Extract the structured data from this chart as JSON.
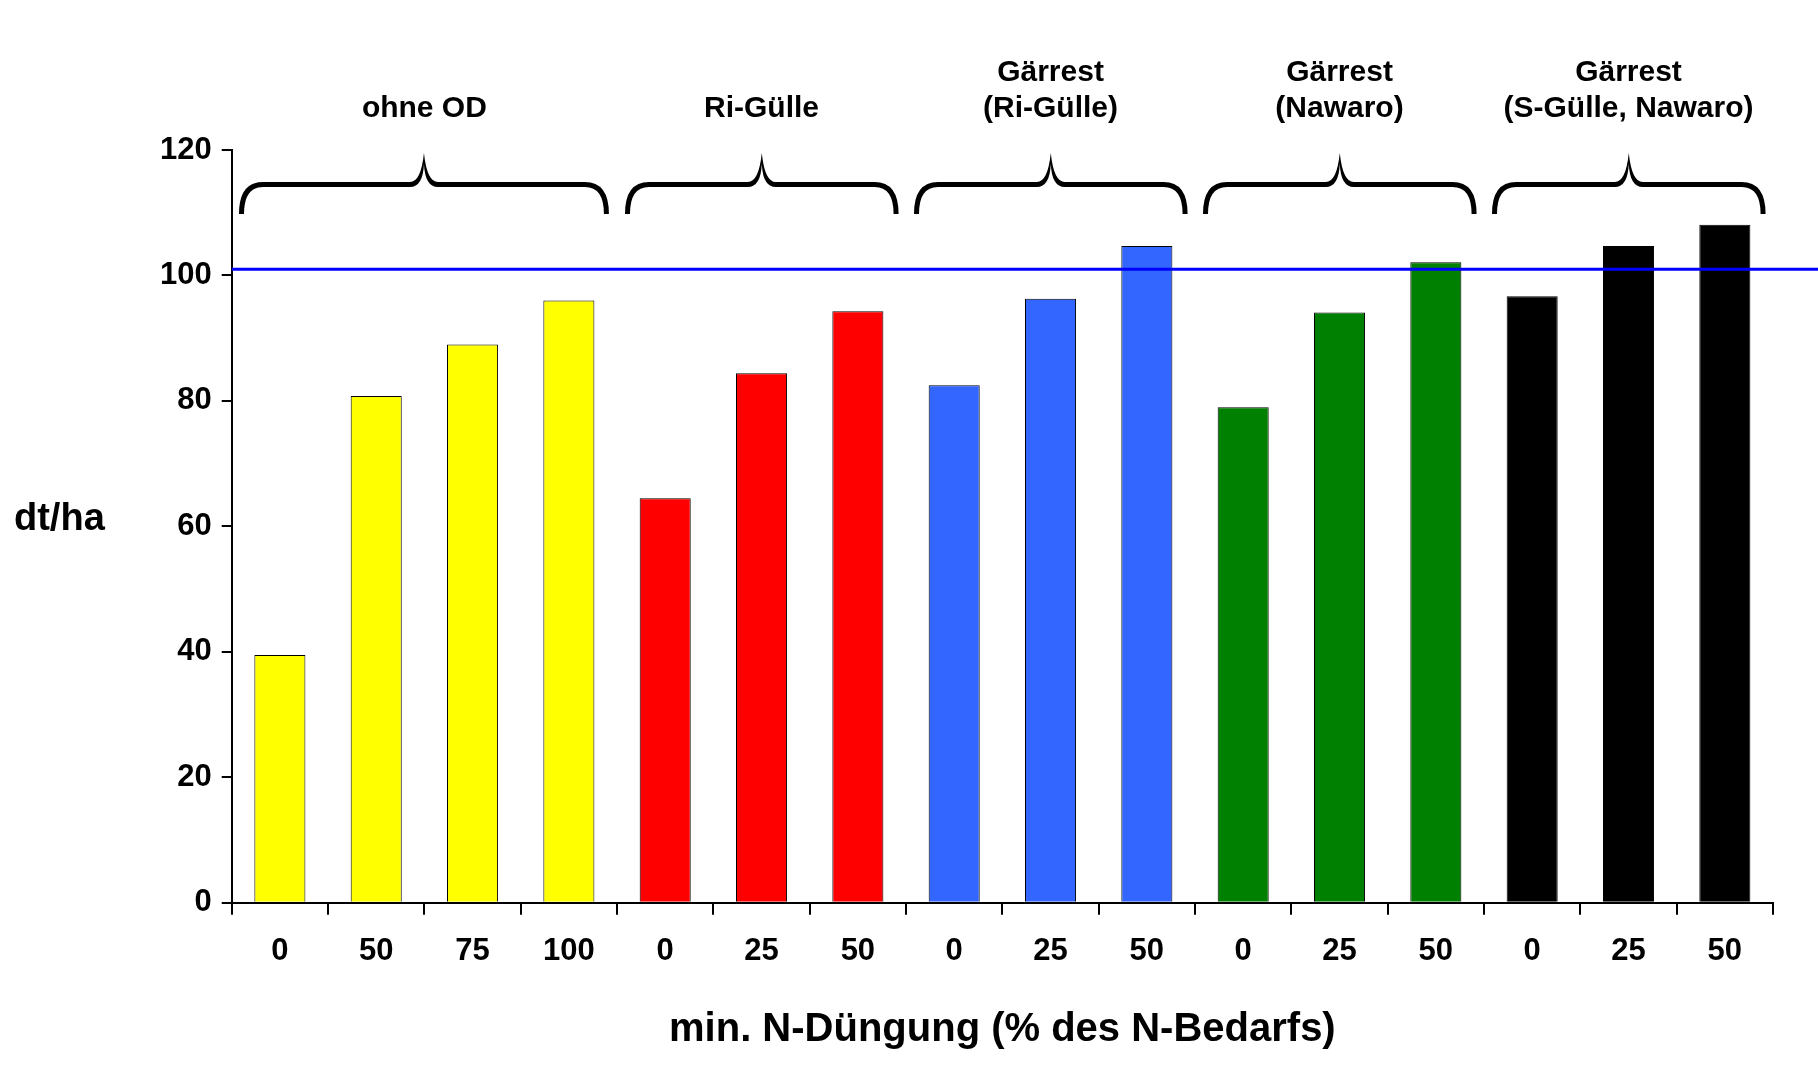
{
  "chart_data": {
    "type": "bar",
    "xlabel": "min. N-Düngung (% des N-Bedarfs)",
    "ylabel": "dt/ha",
    "categories": [
      "0",
      "50",
      "75",
      "100",
      "0",
      "25",
      "50",
      "0",
      "25",
      "50",
      "0",
      "25",
      "50",
      "0",
      "25",
      "50"
    ],
    "values": [
      39.5,
      80.8,
      89,
      96,
      64.5,
      84.4,
      94.3,
      82.5,
      96.3,
      104.7,
      79,
      94.1,
      102.1,
      96.7,
      104.7,
      108.1
    ],
    "colors": [
      "#ffff00",
      "#ffff00",
      "#ffff00",
      "#ffff00",
      "#ff0000",
      "#ff0000",
      "#ff0000",
      "#3366ff",
      "#3366ff",
      "#3366ff",
      "#008000",
      "#008000",
      "#008000",
      "#000000",
      "#000000",
      "#000000"
    ],
    "ylim": [
      0,
      120
    ],
    "yticks": [
      0,
      20,
      40,
      60,
      80,
      100,
      120
    ],
    "grid": false,
    "legend": false,
    "ref_lines": [
      {
        "axis": "y",
        "value": 101,
        "color": "#0000ff"
      }
    ],
    "annotations": [
      "ohne OD",
      "Ri-Gülle",
      "Gärrest\n(Ri-Gülle)",
      "Gärrest\n(Nawaro)",
      "Gärrest\n(S-Gülle, Nawaro)"
    ]
  }
}
